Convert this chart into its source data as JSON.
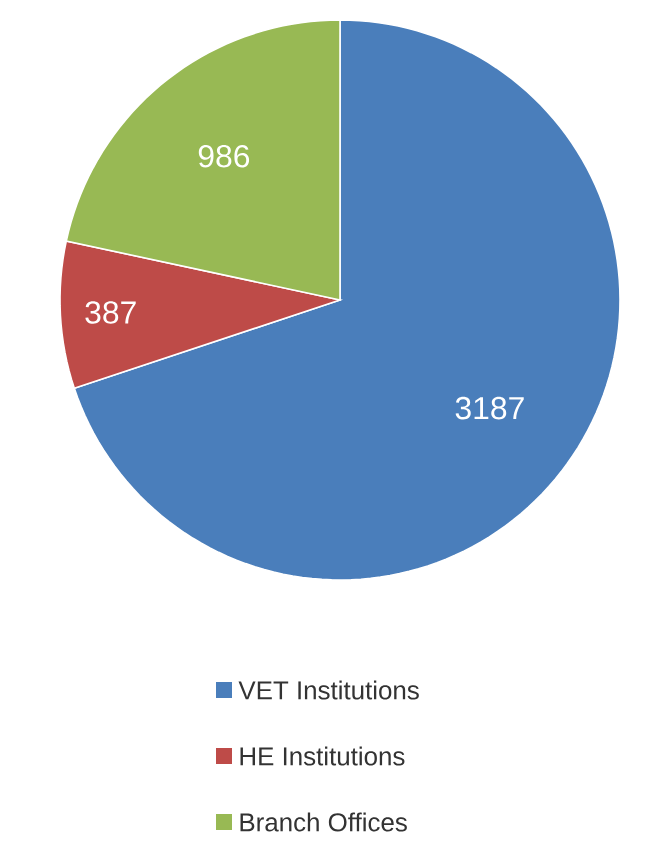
{
  "chart_data": {
    "type": "pie",
    "categories": [
      "VET Institutions",
      "HE Institutions",
      "Branch Offices"
    ],
    "values": [
      3187,
      387,
      986
    ],
    "colors": [
      "#4a7ebb",
      "#be4b48",
      "#98b954"
    ],
    "data_labels": true,
    "legend": "bottom"
  }
}
